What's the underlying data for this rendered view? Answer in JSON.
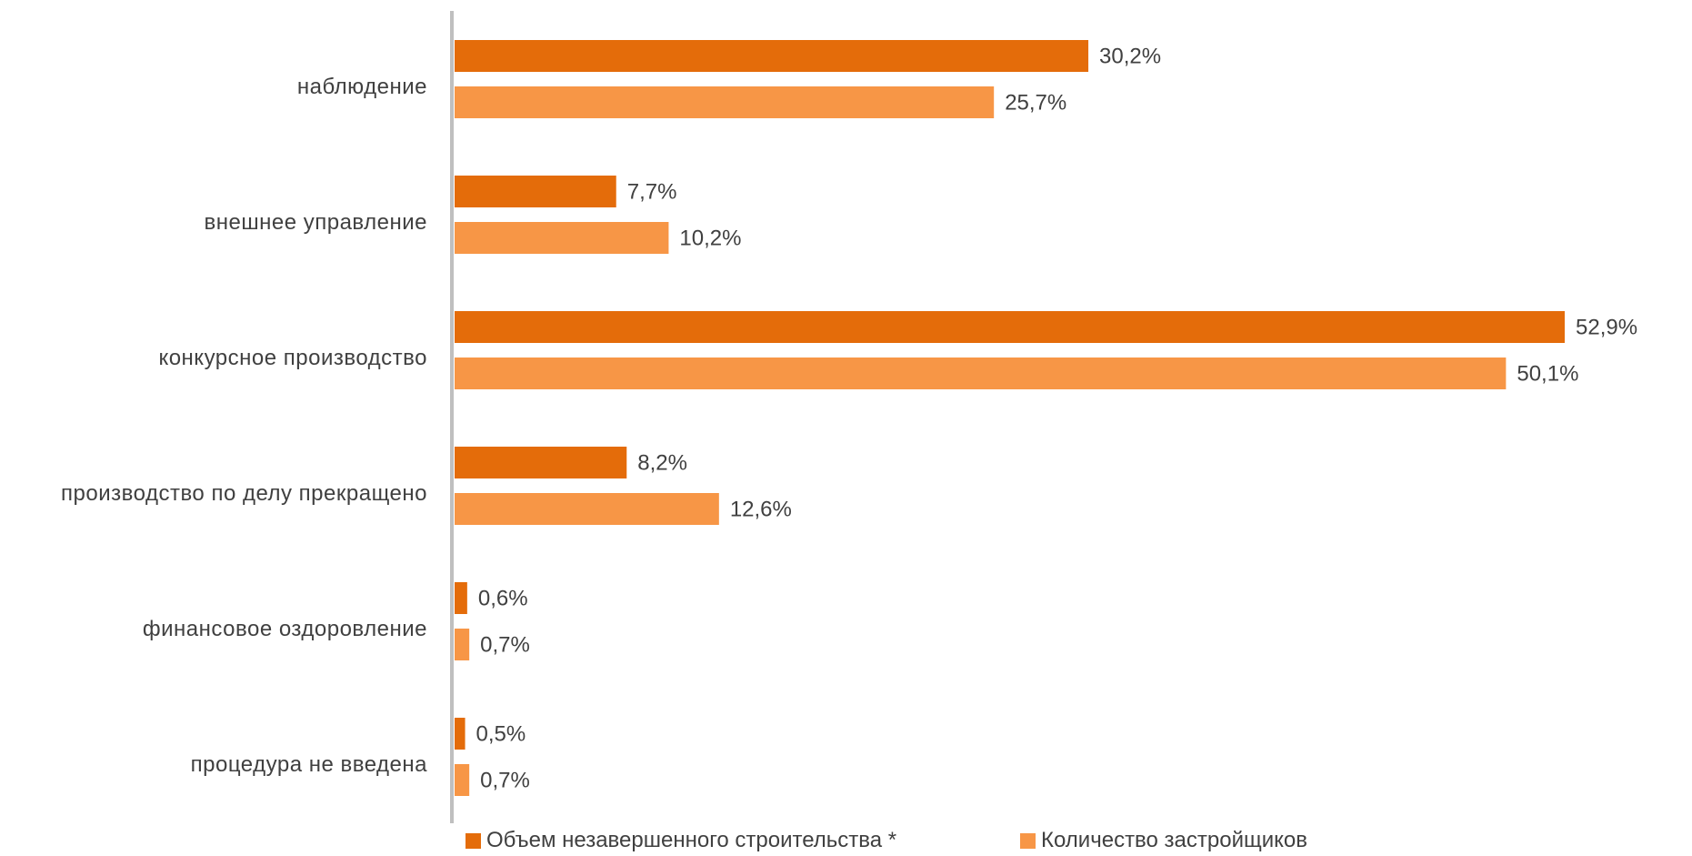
{
  "colors": {
    "series_1": "#E46C0A",
    "series_2": "#F79646",
    "axis": "#BFBFBF",
    "text": "#404040"
  },
  "chart_data": {
    "type": "bar",
    "orientation": "horizontal",
    "categories": [
      "наблюдение",
      "внешнее управление",
      "конкурсное производство",
      "производство по делу прекращено",
      "финансовое оздоровление",
      "процедура не введена"
    ],
    "series": [
      {
        "name": "Объем незавершенного строительства *",
        "values": [
          30.2,
          7.7,
          52.9,
          8.2,
          0.6,
          0.5
        ],
        "labels": [
          "30,2%",
          "7,7%",
          "52,9%",
          "8,2%",
          "0,6%",
          "0,5%"
        ]
      },
      {
        "name": "Количество застройщиков",
        "values": [
          25.7,
          10.2,
          50.1,
          12.6,
          0.7,
          0.7
        ],
        "labels": [
          "25,7%",
          "10,2%",
          "50,1%",
          "12,6%",
          "0,7%",
          "0,7%"
        ]
      }
    ],
    "value_unit": "%",
    "xlim": [
      0,
      55
    ],
    "grid": false,
    "legend_position": "bottom"
  }
}
